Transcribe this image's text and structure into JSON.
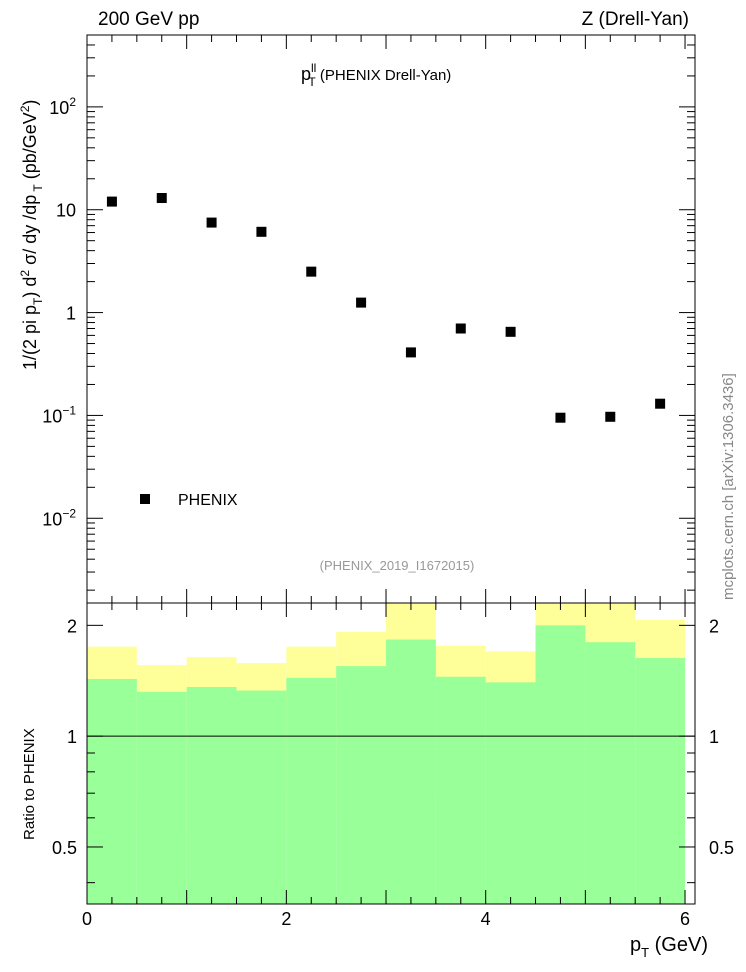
{
  "header": {
    "left": "200 GeV pp",
    "right": "Z (Drell-Yan)"
  },
  "plot_title": {
    "main": "p",
    "sup": "ll",
    "sub": "T",
    "rest": " (PHENIX Drell-Yan)"
  },
  "ylabel_top": "1/(2 pi p_T) d^2 σ/ dy /dp_T (pb/GeV^2)",
  "ylabel_bottom": "Ratio to PHENIX",
  "xlabel": "p_T (GeV)",
  "legend_label": "PHENIX",
  "analysis_tag": "(PHENIX_2019_I1672015)",
  "watermark": "mcplots.cern.ch [arXiv:1306.3436]",
  "top_yticks": [
    {
      "value": 100,
      "base": "10",
      "exp": "2"
    },
    {
      "value": 10,
      "base": "10",
      "exp": ""
    },
    {
      "value": 1,
      "base": "1",
      "exp": ""
    },
    {
      "value": 0.1,
      "base": "10",
      "exp": "−1"
    },
    {
      "value": 0.01,
      "base": "10",
      "exp": "−2"
    }
  ],
  "bottom_yticks": [
    {
      "value": 2,
      "label": "2"
    },
    {
      "value": 1,
      "label": "1"
    },
    {
      "value": 0.5,
      "label": "0.5"
    }
  ],
  "xticks": [
    {
      "value": 0,
      "label": "0"
    },
    {
      "value": 2,
      "label": "2"
    },
    {
      "value": 4,
      "label": "4"
    },
    {
      "value": 6,
      "label": "6"
    }
  ],
  "colors": {
    "marker": "#000000",
    "band_inner": "#99ff99",
    "band_outer": "#ffff99",
    "tag": "#999999",
    "watermark": "#888888"
  },
  "chart_data": [
    {
      "type": "scatter",
      "title": "p_T^ll (PHENIX Drell-Yan)",
      "xlim": [
        0,
        6.1
      ],
      "ylim": [
        0.0015,
        500
      ],
      "yscale": "log",
      "series": [
        {
          "name": "PHENIX",
          "x": [
            0.25,
            0.75,
            1.25,
            1.75,
            2.25,
            2.75,
            3.25,
            3.75,
            4.25,
            4.75,
            5.25,
            5.75
          ],
          "y": [
            12.0,
            13.0,
            7.5,
            6.1,
            2.5,
            1.25,
            0.41,
            0.7,
            0.65,
            0.095,
            0.097,
            0.13
          ]
        }
      ]
    },
    {
      "type": "area",
      "title": "Ratio to PHENIX",
      "xlim": [
        0,
        6.1
      ],
      "ylim": [
        0.35,
        2.3
      ],
      "yscale": "log",
      "reference_line": 1,
      "bin_edges": [
        0,
        0.5,
        1,
        1.5,
        2,
        2.5,
        3,
        3.5,
        4,
        4.5,
        5,
        5.5,
        6
      ],
      "inner_band": {
        "low": [
          0.35,
          0.35,
          0.35,
          0.35,
          0.35,
          0.35,
          0.35,
          0.35,
          0.35,
          0.35,
          0.35,
          0.35
        ],
        "high": [
          1.43,
          1.32,
          1.36,
          1.33,
          1.44,
          1.55,
          1.83,
          1.45,
          1.4,
          2.0,
          1.8,
          1.63
        ]
      },
      "outer_band": {
        "low": [
          0.7,
          0.56,
          0.46,
          0.54,
          0.72,
          0.6,
          0.35,
          0.69,
          0.73,
          0.35,
          0.35,
          0.41
        ],
        "high": [
          1.75,
          1.56,
          1.64,
          1.58,
          1.75,
          1.92,
          2.3,
          1.76,
          1.7,
          2.3,
          2.3,
          2.07
        ]
      }
    }
  ]
}
